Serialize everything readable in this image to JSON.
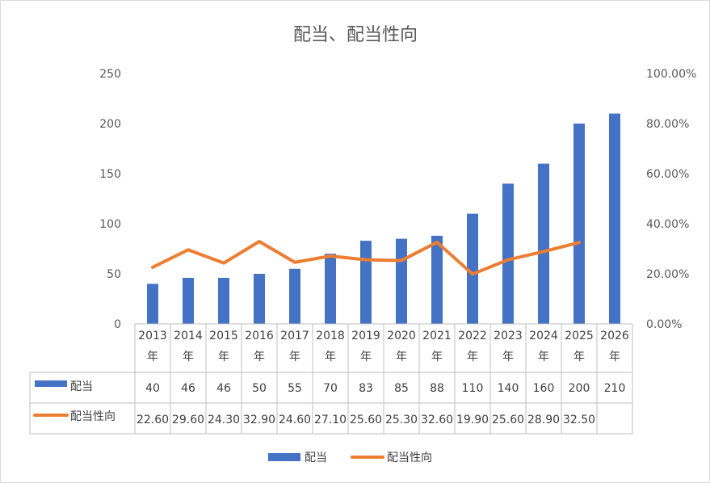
{
  "chart_data": {
    "type": "bar",
    "title": "配当、配当性向",
    "categories": [
      "2013年",
      "2014年",
      "2015年",
      "2016年",
      "2017年",
      "2018年",
      "2019年",
      "2020年",
      "2021年",
      "2022年",
      "2023年",
      "2024年",
      "2025年",
      "2026年"
    ],
    "category_lines": [
      [
        "2013",
        "年"
      ],
      [
        "2014",
        "年"
      ],
      [
        "2015",
        "年"
      ],
      [
        "2016",
        "年"
      ],
      [
        "2017",
        "年"
      ],
      [
        "2018",
        "年"
      ],
      [
        "2019",
        "年"
      ],
      [
        "2020",
        "年"
      ],
      [
        "2021",
        "年"
      ],
      [
        "2022",
        "年"
      ],
      [
        "2023",
        "年"
      ],
      [
        "2024",
        "年"
      ],
      [
        "2025",
        "年"
      ],
      [
        "2026",
        "年"
      ]
    ],
    "series": [
      {
        "name": "配当",
        "type": "bar",
        "axis": "left",
        "color": "#4472C4",
        "values": [
          40,
          46,
          46,
          50,
          55,
          70,
          83,
          85,
          88,
          110,
          140,
          160,
          200,
          210
        ],
        "labels": [
          "40",
          "46",
          "46",
          "50",
          "55",
          "70",
          "83",
          "85",
          "88",
          "110",
          "140",
          "160",
          "200",
          "210"
        ]
      },
      {
        "name": "配当性向",
        "type": "line",
        "axis": "right",
        "color": "#ED7D31",
        "values": [
          22.6,
          29.6,
          24.3,
          32.9,
          24.6,
          27.1,
          25.6,
          25.3,
          32.6,
          19.9,
          25.6,
          28.9,
          32.5,
          null
        ],
        "labels": [
          "22.60",
          "29.60",
          "24.30",
          "32.90",
          "24.60",
          "27.10",
          "25.60",
          "25.30",
          "32.60",
          "19.90",
          "25.60",
          "28.90",
          "32.50",
          ""
        ]
      }
    ],
    "y_left": {
      "min": 0,
      "max": 250,
      "ticks": [
        "0",
        "50",
        "100",
        "150",
        "200",
        "250"
      ]
    },
    "y_right": {
      "min": 0,
      "max": 100,
      "ticks": [
        "0.00%",
        "20.00%",
        "40.00%",
        "60.00%",
        "80.00%",
        "100.00%"
      ]
    },
    "data_table": true,
    "legend": "bottom"
  }
}
